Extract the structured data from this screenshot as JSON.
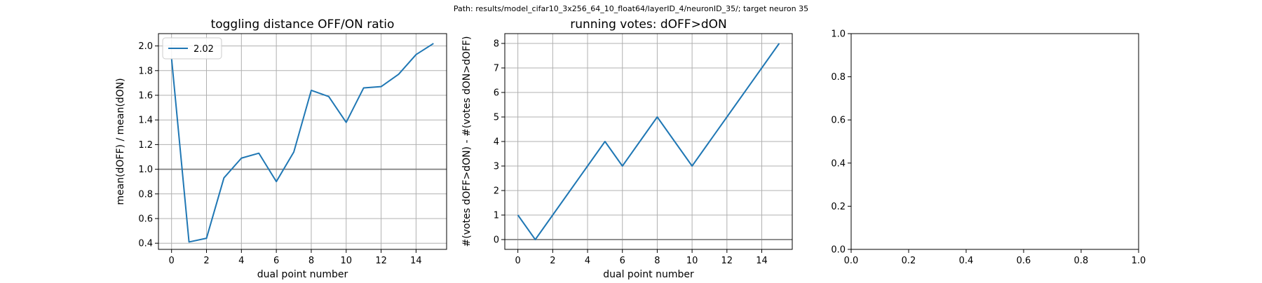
{
  "figure": {
    "suptitle": "Path: results/model_cifar10_3x256_64_10_float64/layerID_4/neuronID_35/; target neuron 35",
    "colors": {
      "line": "#1f77b4",
      "grid": "#b0b0b0",
      "refline": "#808080",
      "axes": "#000000"
    }
  },
  "chart_data": [
    {
      "type": "line",
      "title": "toggling distance OFF/ON ratio",
      "xlabel": "dual point number",
      "ylabel": "mean(dOFF) / mean(dON)",
      "x": [
        0,
        1,
        2,
        3,
        4,
        5,
        6,
        7,
        8,
        9,
        10,
        11,
        12,
        13,
        14,
        15
      ],
      "series": [
        {
          "name": "2.02",
          "values": [
            1.9,
            0.41,
            0.44,
            0.93,
            1.09,
            1.13,
            0.9,
            1.14,
            1.64,
            1.59,
            1.38,
            1.66,
            1.67,
            1.77,
            1.93,
            2.02
          ]
        }
      ],
      "xlim": [
        -0.75,
        15.75
      ],
      "ylim": [
        0.35,
        2.1
      ],
      "xticks": [
        0,
        2,
        4,
        6,
        8,
        10,
        12,
        14
      ],
      "yticks": [
        0.4,
        0.6,
        0.8,
        1.0,
        1.2,
        1.4,
        1.6,
        1.8,
        2.0
      ],
      "ytick_labels": [
        "0.4",
        "0.6",
        "0.8",
        "1.0",
        "1.2",
        "1.4",
        "1.6",
        "1.8",
        "2.0"
      ],
      "reference_line_y": 1.0,
      "grid": true,
      "legend": "upper-left"
    },
    {
      "type": "line",
      "title": "running votes: dOFF>dON",
      "xlabel": "dual point number",
      "ylabel": "#(votes dOFF>dON) - #(votes dON>dOFF)",
      "x": [
        0,
        1,
        2,
        3,
        4,
        5,
        6,
        7,
        8,
        9,
        10,
        11,
        12,
        13,
        14,
        15
      ],
      "series": [
        {
          "name": "",
          "values": [
            1,
            0,
            1,
            2,
            3,
            4,
            3,
            4,
            5,
            4,
            3,
            4,
            5,
            6,
            7,
            8
          ]
        }
      ],
      "xlim": [
        -0.75,
        15.75
      ],
      "ylim": [
        -0.4,
        8.4
      ],
      "xticks": [
        0,
        2,
        4,
        6,
        8,
        10,
        12,
        14
      ],
      "yticks": [
        0,
        1,
        2,
        3,
        4,
        5,
        6,
        7,
        8
      ],
      "ytick_labels": [
        "0",
        "1",
        "2",
        "3",
        "4",
        "5",
        "6",
        "7",
        "8"
      ],
      "reference_line_y": 0,
      "grid": true,
      "legend": "none"
    },
    {
      "type": "line",
      "title": "",
      "xlabel": "",
      "ylabel": "",
      "x": [],
      "series": [],
      "xlim": [
        0,
        1
      ],
      "ylim": [
        0,
        1
      ],
      "xticks": [
        0,
        0.2,
        0.4,
        0.6,
        0.8,
        1.0
      ],
      "xtick_labels": [
        "0.0",
        "0.2",
        "0.4",
        "0.6",
        "0.8",
        "1.0"
      ],
      "yticks": [
        0,
        0.2,
        0.4,
        0.6,
        0.8,
        1.0
      ],
      "ytick_labels": [
        "0.0",
        "0.2",
        "0.4",
        "0.6",
        "0.8",
        "1.0"
      ],
      "grid": false,
      "legend": "none"
    }
  ]
}
